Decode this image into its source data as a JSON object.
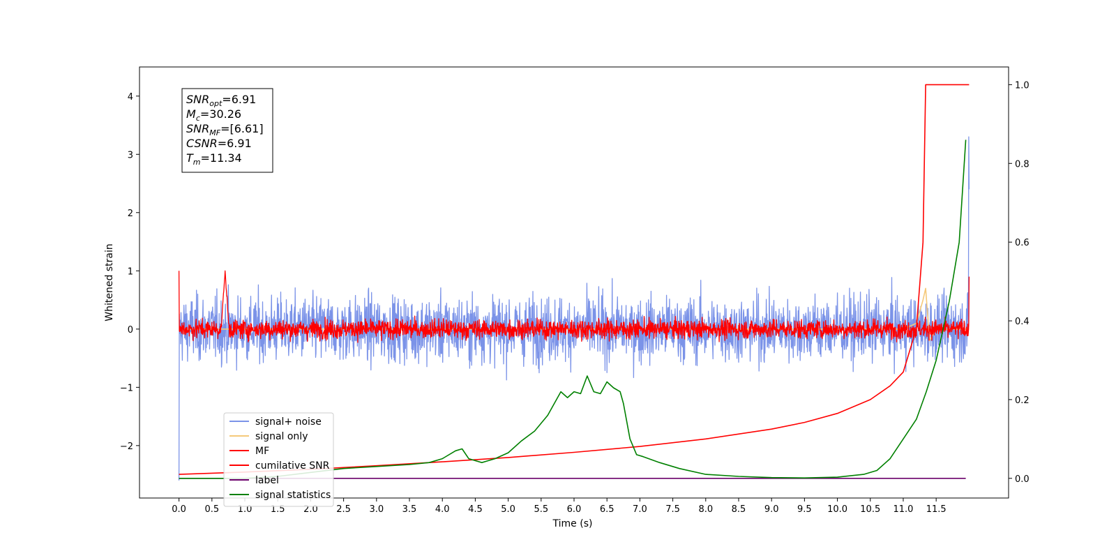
{
  "chart_data": {
    "type": "line",
    "xlabel": "Time (s)",
    "ylabel_left": "Whitened strain",
    "ylabel_right": "",
    "xlim": [
      -0.6,
      12.6
    ],
    "ylim_left": [
      -2.9,
      4.5
    ],
    "ylim_right": [
      -0.05,
      1.045
    ],
    "x_ticks": [
      0.0,
      0.5,
      1.0,
      1.5,
      2.0,
      2.5,
      3.0,
      3.5,
      4.0,
      4.5,
      5.0,
      5.5,
      6.0,
      6.5,
      7.0,
      7.5,
      8.0,
      8.5,
      9.0,
      9.5,
      10.0,
      10.5,
      11.0,
      11.5
    ],
    "x_tick_labels": [
      "0.0",
      "0.5",
      "1.0",
      "1.5",
      "2.0",
      "2.5",
      "3.0",
      "3.5",
      "4.0",
      "4.5",
      "5.0",
      "5.5",
      "6.0",
      "6.5",
      "7.0",
      "7.5",
      "8.0",
      "8.5",
      "9.0",
      "9.5",
      "10.0",
      "10.5",
      "11.0",
      "11.5"
    ],
    "y_left_ticks": [
      -2,
      -1,
      0,
      1,
      2,
      3,
      4
    ],
    "y_left_tick_labels": [
      "−2",
      "−1",
      "0",
      "1",
      "2",
      "3",
      "4"
    ],
    "y_right_ticks": [
      0.0,
      0.2,
      0.4,
      0.6,
      0.8,
      1.0
    ],
    "y_right_tick_labels": [
      "0.0",
      "0.2",
      "0.4",
      "0.6",
      "0.8",
      "1.0"
    ],
    "grid": false,
    "legend_position": "lower-left",
    "annotation": {
      "lines": [
        {
          "symbol": "SNR",
          "sub": "opt",
          "value": "=6.91"
        },
        {
          "symbol": "M",
          "sub": "c",
          "value": "=30.26"
        },
        {
          "symbol": "SNR",
          "sub": "MF",
          "value": "=[6.61]"
        },
        {
          "symbol": "CSNR",
          "sub": "",
          "value": "=6.91"
        },
        {
          "symbol": "T",
          "sub": "m",
          "value": "=11.34"
        }
      ]
    },
    "series": [
      {
        "name": "signal+ noise",
        "color": "#7b93e8",
        "axis": "left",
        "kind": "noise",
        "x_range": [
          0.0,
          12.0
        ],
        "typical_range": [
          -0.85,
          0.85
        ],
        "peak_max": 1.65,
        "peak_min": -1.72,
        "start_value": -2.6,
        "end_spike": 3.3,
        "end_value": 2.4
      },
      {
        "name": "signal only",
        "color": "#f5c97a",
        "axis": "left",
        "x": [
          0.0,
          11.0,
          11.2,
          11.3,
          11.34,
          11.4,
          11.5,
          12.0
        ],
        "y": [
          0.0,
          0.0,
          0.1,
          0.5,
          0.7,
          -0.2,
          0.0,
          0.0
        ]
      },
      {
        "name": "MF",
        "color": "#ff0000",
        "axis": "left",
        "kind": "noise",
        "x_range": [
          0.0,
          12.0
        ],
        "typical_range": [
          -0.25,
          0.25
        ],
        "peak_max": 1.0,
        "peak_min": -0.4,
        "start_value": 1.0,
        "bump_at": 0.7,
        "bump_value": 1.0,
        "end_value": 0.9
      },
      {
        "name": "cumilative SNR",
        "color": "#ff0000",
        "axis": "right",
        "x": [
          0.0,
          1.0,
          2.0,
          3.0,
          4.0,
          5.0,
          6.0,
          7.0,
          8.0,
          9.0,
          9.5,
          10.0,
          10.5,
          10.8,
          11.0,
          11.2,
          11.3,
          11.34,
          11.4,
          12.0
        ],
        "y": [
          0.01,
          0.016,
          0.023,
          0.032,
          0.042,
          0.053,
          0.066,
          0.081,
          0.1,
          0.125,
          0.142,
          0.165,
          0.2,
          0.235,
          0.27,
          0.38,
          0.6,
          1.0,
          1.0,
          1.0
        ]
      },
      {
        "name": "label",
        "color": "#6a006a",
        "axis": "right",
        "x": [
          0.0,
          11.95
        ],
        "y": [
          0.0,
          0.0
        ]
      },
      {
        "name": "signal statistics",
        "color": "#008000",
        "axis": "right",
        "x": [
          0.0,
          1.0,
          1.5,
          2.0,
          2.5,
          3.0,
          3.5,
          3.8,
          4.0,
          4.2,
          4.3,
          4.4,
          4.6,
          4.7,
          4.8,
          5.0,
          5.2,
          5.4,
          5.6,
          5.8,
          5.9,
          6.0,
          6.1,
          6.2,
          6.3,
          6.4,
          6.5,
          6.6,
          6.7,
          6.75,
          6.85,
          6.95,
          7.05,
          7.3,
          7.6,
          8.0,
          8.5,
          9.0,
          9.5,
          10.0,
          10.4,
          10.6,
          10.8,
          11.0,
          11.2,
          11.35,
          11.5,
          11.7,
          11.85,
          11.95
        ],
        "y": [
          0.0,
          0.0,
          0.005,
          0.015,
          0.025,
          0.03,
          0.035,
          0.04,
          0.05,
          0.07,
          0.075,
          0.05,
          0.04,
          0.045,
          0.05,
          0.065,
          0.095,
          0.12,
          0.16,
          0.22,
          0.205,
          0.22,
          0.215,
          0.26,
          0.22,
          0.215,
          0.245,
          0.23,
          0.22,
          0.19,
          0.1,
          0.06,
          0.055,
          0.04,
          0.025,
          0.01,
          0.005,
          0.002,
          0.001,
          0.003,
          0.01,
          0.02,
          0.05,
          0.1,
          0.15,
          0.22,
          0.3,
          0.45,
          0.6,
          0.86
        ]
      }
    ]
  }
}
